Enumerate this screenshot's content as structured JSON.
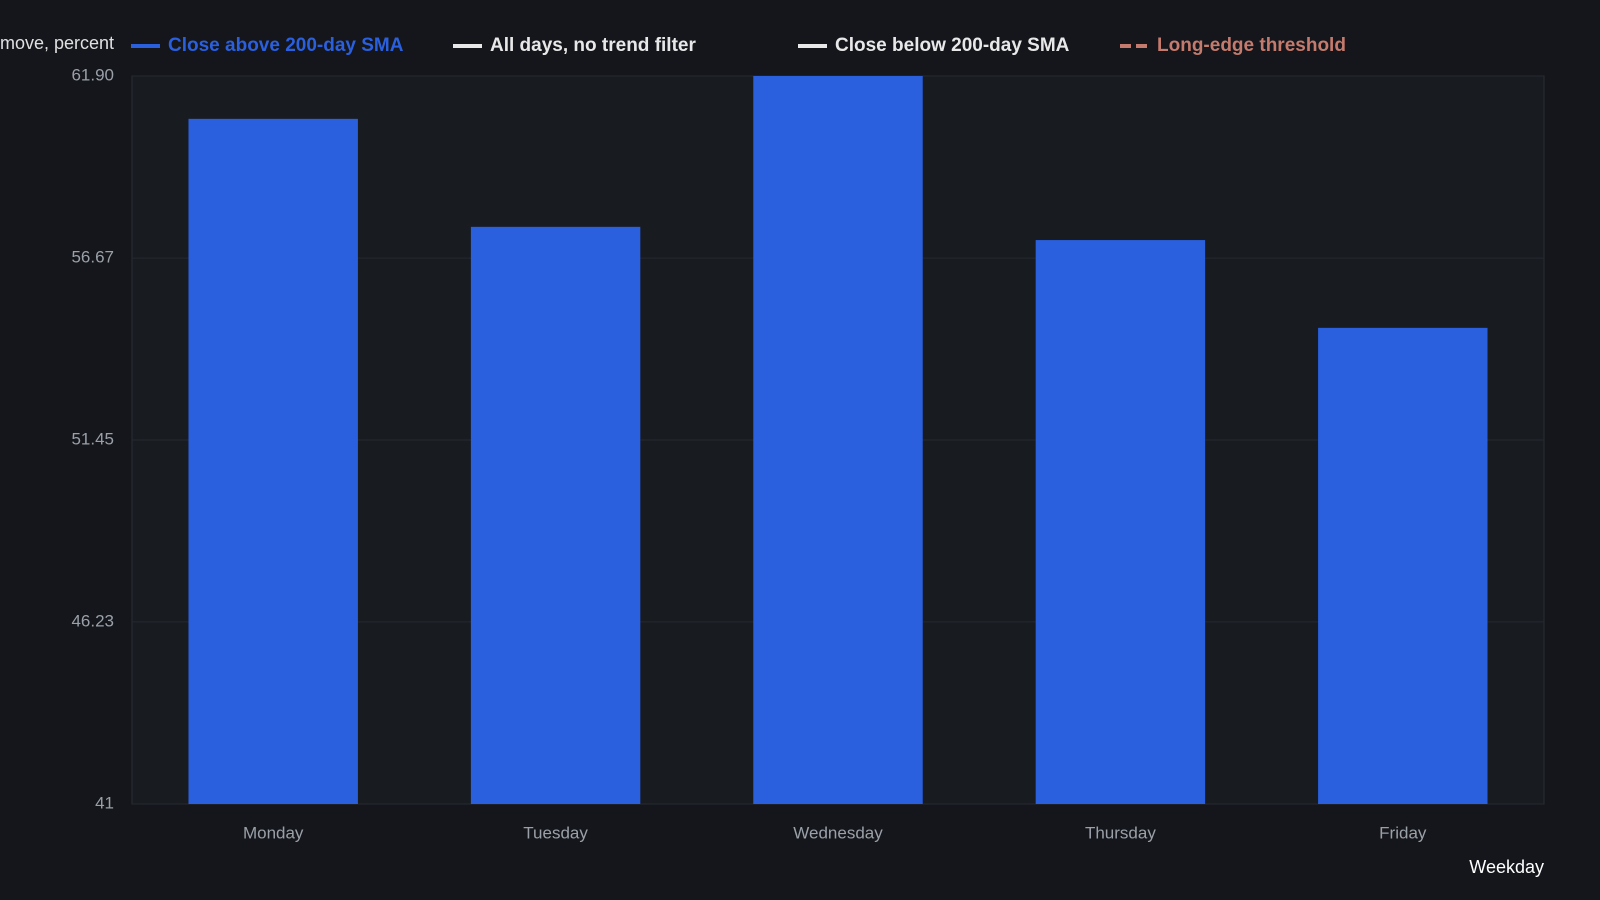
{
  "chart_data": {
    "type": "bar",
    "y_label": "move, percent",
    "x_label": "Weekday",
    "categories": [
      "Monday",
      "Tuesday",
      "Wednesday",
      "Thursday",
      "Friday"
    ],
    "series": [
      {
        "name": "Close above 200-day SMA",
        "color": "#2a5fde",
        "values": [
          60.67,
          57.57,
          61.9,
          57.19,
          54.67
        ]
      },
      {
        "name": "All days, no trend filter",
        "color": "#e8e8e8"
      },
      {
        "name": "Close below 200-day SMA",
        "color": "#e8e8e8"
      },
      {
        "name": "Long-edge threshold",
        "color": "#c47a6c",
        "dashed": true
      }
    ],
    "ylim": [
      41,
      61.9
    ],
    "yticks": [
      41,
      46.23,
      51.45,
      56.67,
      {
        "value": 61.9,
        "label": "61.90"
      }
    ],
    "grid": true
  }
}
